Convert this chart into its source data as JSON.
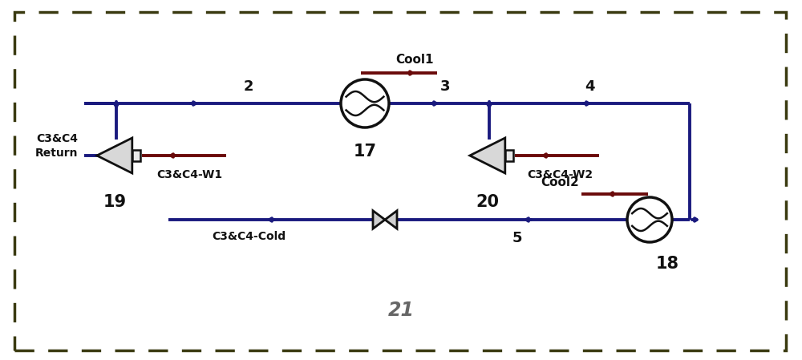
{
  "bg_color": "#ffffff",
  "border_color": "#3a3a10",
  "line_color_blue": "#1a1a7e",
  "line_color_dark": "#6a0a0a",
  "text_color": "#111111",
  "lw": 2.8,
  "fig_width": 10.0,
  "fig_height": 4.49,
  "dpi": 100,
  "labels": {
    "num_2": "2",
    "num_3": "3",
    "num_4": "4",
    "num_5": "5",
    "num_17": "17",
    "num_18": "18",
    "num_19": "19",
    "num_20": "20",
    "num_21": "21",
    "cool1": "Cool1",
    "cool2": "Cool2",
    "c3c4_return": "C3&C4\nReturn",
    "c3c4_w1": "C3&C4-W1",
    "c3c4_w2": "C3&C4-W2",
    "c3c4_cold": "C3&C4-Cold"
  },
  "xlim": [
    0,
    10
  ],
  "ylim": [
    0,
    4.49
  ]
}
